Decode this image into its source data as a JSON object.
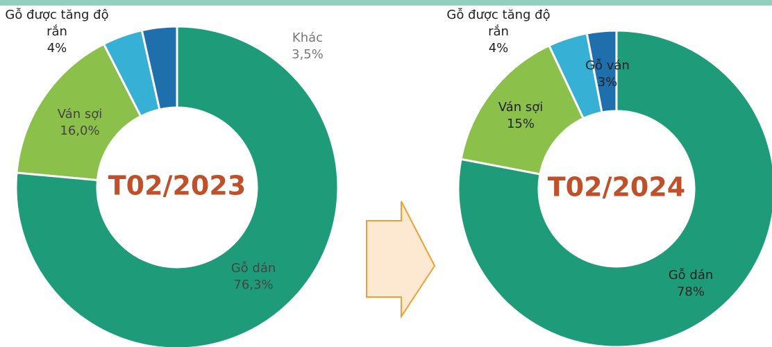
{
  "chart_data": [
    {
      "type": "donut",
      "title": "T02/2023",
      "categories": [
        "Gỗ dán",
        "Ván sợi",
        "Gỗ được tăng độ rắn",
        "Khác"
      ],
      "values": [
        76.3,
        16.0,
        4,
        3.5
      ],
      "value_labels": [
        "76,3%",
        "16,0%",
        "4%",
        "3,5%"
      ],
      "colors": [
        "#1e9c7a",
        "#8bc04a",
        "#36b0d4",
        "#1f6fad"
      ]
    },
    {
      "type": "donut",
      "title": "T02/2024",
      "categories": [
        "Gỗ dán",
        "Ván sợi",
        "Gỗ được tăng độ rắn",
        "Gỗ ván"
      ],
      "values": [
        78,
        15,
        4,
        3
      ],
      "value_labels": [
        "78%",
        "15%",
        "4%",
        "3%"
      ],
      "colors": [
        "#1e9c7a",
        "#8bc04a",
        "#36b0d4",
        "#1f6fad"
      ]
    }
  ]
}
